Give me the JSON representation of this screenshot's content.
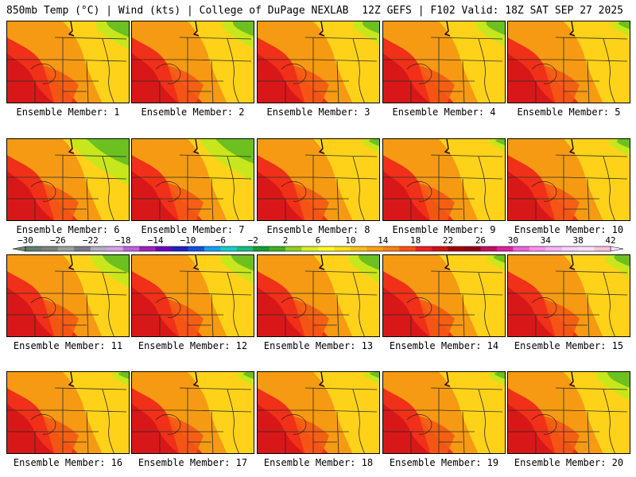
{
  "header": {
    "left": "850mb Temp (°C) | Wind (kts) | College of DuPage NEXLAB",
    "right": "12Z GEFS | F102 Valid: 18Z SAT SEP 27 2025"
  },
  "caption_prefix": "Ensemble Member:",
  "members": [
    {
      "label": "Ensemble Member: 1",
      "green": 0.3
    },
    {
      "label": "Ensemble Member: 2",
      "green": 0.28
    },
    {
      "label": "Ensemble Member: 3",
      "green": 0.22
    },
    {
      "label": "Ensemble Member: 4",
      "green": 0.25
    },
    {
      "label": "Ensemble Member: 5",
      "green": 0.12
    },
    {
      "label": "Ensemble Member: 6",
      "green": 0.55
    },
    {
      "label": "Ensemble Member: 7",
      "green": 0.5
    },
    {
      "label": "Ensemble Member: 8",
      "green": 0.1
    },
    {
      "label": "Ensemble Member: 9",
      "green": 0.08
    },
    {
      "label": "Ensemble Member: 10",
      "green": 0.15
    },
    {
      "label": "Ensemble Member: 11",
      "green": 0.35
    },
    {
      "label": "Ensemble Member: 12",
      "green": 0.3
    },
    {
      "label": "Ensemble Member: 13",
      "green": 0.28
    },
    {
      "label": "Ensemble Member: 14",
      "green": 0.12
    },
    {
      "label": "Ensemble Member: 15",
      "green": 0.2
    },
    {
      "label": "Ensemble Member: 16",
      "green": 0.1
    },
    {
      "label": "Ensemble Member: 17",
      "green": 0.1
    },
    {
      "label": "Ensemble Member: 18",
      "green": 0.08
    },
    {
      "label": "Ensemble Member: 19",
      "green": 0.1
    },
    {
      "label": "Ensemble Member: 20",
      "green": 0.3
    }
  ],
  "colorbar": {
    "min": -30,
    "max": 42,
    "step": 2,
    "labels": [
      "-30",
      "-26",
      "-22",
      "-18",
      "-14",
      "-10",
      "-6",
      "-2",
      "2",
      "6",
      "10",
      "14",
      "18",
      "22",
      "26",
      "30",
      "34",
      "38",
      "42"
    ],
    "colors": [
      "#5f7f6f",
      "#7f7f7f",
      "#9f9f9f",
      "#7a7a8a",
      "#b0b0c0",
      "#d8a0e8",
      "#c060e0",
      "#a020c0",
      "#6a00c0",
      "#2020c0",
      "#1050e0",
      "#10a0f0",
      "#10d0d0",
      "#10c080",
      "#10a030",
      "#40b020",
      "#90d020",
      "#d8f020",
      "#ffff20",
      "#ffe010",
      "#ffc010",
      "#ffa010",
      "#ff8010",
      "#ff5010",
      "#f02020",
      "#d01010",
      "#a00000",
      "#900010",
      "#c01060",
      "#e020a0",
      "#f060e0",
      "#ff90f0",
      "#ffb0ff",
      "#ffd0ff",
      "#ffe0ff",
      "#ffc0e0"
    ]
  }
}
